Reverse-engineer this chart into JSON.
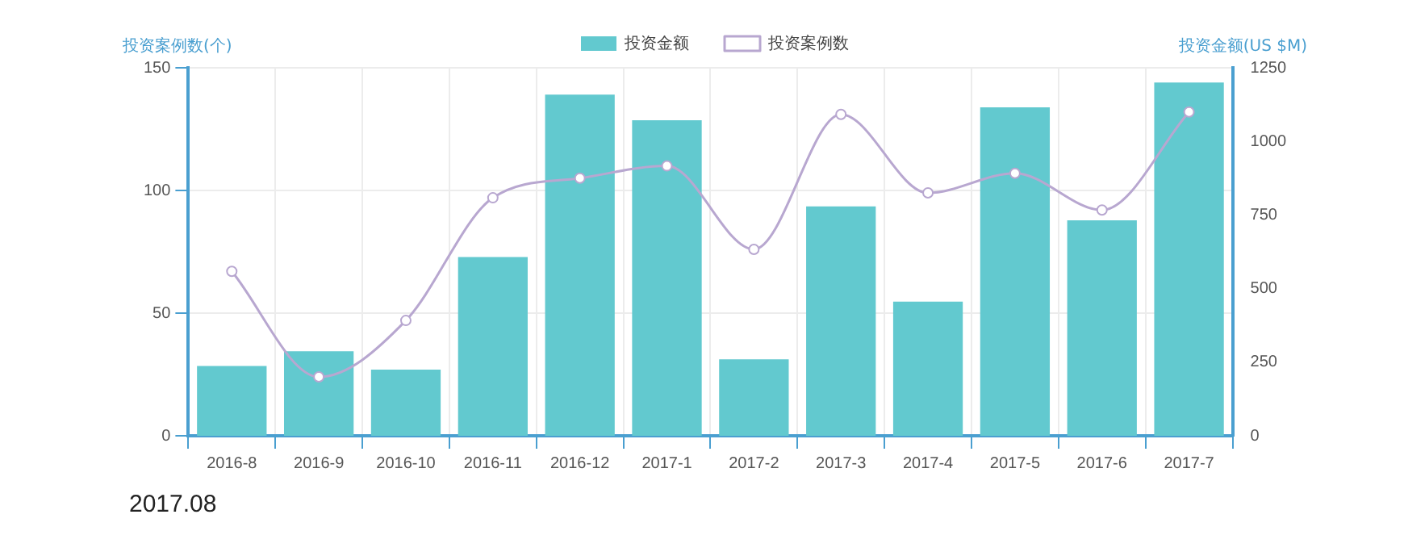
{
  "chart_data": {
    "type": "bar",
    "categories": [
      "2016-8",
      "2016-9",
      "2016-10",
      "2016-11",
      "2016-12",
      "2017-1",
      "2017-2",
      "2017-3",
      "2017-4",
      "2017-5",
      "2017-6",
      "2017-7"
    ],
    "series": [
      {
        "name": "投资金额",
        "axis": "y2",
        "color": "#62c9cf",
        "values": [
          237,
          287,
          225,
          607,
          1159,
          1072,
          260,
          779,
          456,
          1116,
          732,
          1200
        ]
      },
      {
        "name": "投资案例数",
        "type": "line",
        "color": "#b8a7d0",
        "marker": "circle",
        "values": [
          67,
          24,
          47,
          97,
          105,
          110,
          76,
          131,
          99,
          107,
          92,
          132
        ]
      }
    ],
    "ylabel": "投资案例数(个)",
    "y2label": "投资金额(US $M)",
    "ylim": [
      0,
      150
    ],
    "yticks": [
      0,
      50,
      100,
      150
    ],
    "y2lim": [
      0,
      1250
    ],
    "y2ticks": [
      0,
      250,
      500,
      750,
      1000,
      1250
    ],
    "grid": true,
    "legend": "top",
    "annotations": [
      "2017.08"
    ]
  }
}
